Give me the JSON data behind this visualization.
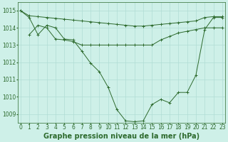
{
  "title": "Graphe pression niveau de la mer (hPa)",
  "x_labels": [
    "0",
    "1",
    "2",
    "3",
    "4",
    "5",
    "6",
    "7",
    "8",
    "9",
    "10",
    "11",
    "12",
    "13",
    "14",
    "15",
    "16",
    "17",
    "18",
    "19",
    "20",
    "21",
    "22",
    "23"
  ],
  "series1": [
    1015.0,
    1014.7,
    1014.65,
    1014.6,
    1014.55,
    1014.5,
    1014.45,
    1014.4,
    1014.35,
    1014.3,
    1014.25,
    1014.2,
    1014.15,
    1014.1,
    1014.1,
    1014.15,
    1014.2,
    1014.25,
    1014.3,
    1014.35,
    1014.4,
    1014.6,
    1014.65,
    1014.65
  ],
  "series2": [
    1014.6,
    1013.6,
    1014.15,
    1014.0,
    1013.35,
    1013.3,
    1013.2,
    1013.0,
    1013.0,
    1013.0,
    1013.0,
    1013.0,
    1013.0,
    1013.0,
    1013.0,
    1013.0,
    1013.3,
    1013.5,
    1013.7,
    1013.8,
    1013.9,
    1014.0,
    1014.0,
    1014.0
  ],
  "series3": [
    1015.0,
    1014.6,
    1013.6,
    1014.15,
    1014.0,
    1013.35,
    1013.3,
    1012.65,
    1011.95,
    1011.45,
    1010.55,
    1009.25,
    1008.6,
    1008.55,
    1008.6,
    1009.55,
    1009.85,
    1009.65,
    1010.25,
    1010.25,
    1011.25,
    1013.9,
    1014.6,
    1014.6
  ],
  "ylim": [
    1008.5,
    1015.5
  ],
  "yticks": [
    1009,
    1010,
    1011,
    1012,
    1013,
    1014,
    1015
  ],
  "line_color": "#2d6a2d",
  "bg_color": "#cef0e8",
  "grid_color": "#b0ddd4",
  "title_color": "#2d6a2d",
  "title_fontsize": 7.0,
  "tick_fontsize": 5.5,
  "figsize": [
    3.2,
    2.0
  ],
  "dpi": 100
}
